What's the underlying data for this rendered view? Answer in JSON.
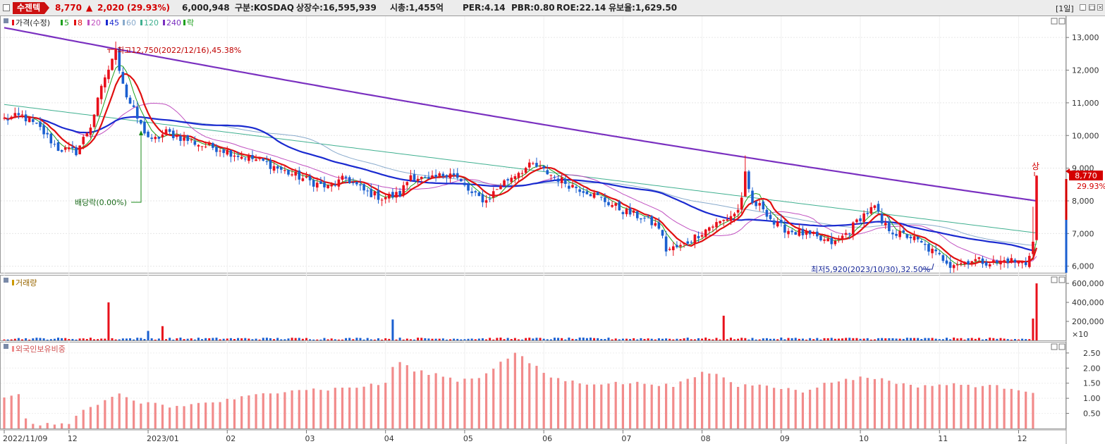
{
  "header": {
    "stock_name": "수젠텍",
    "price": "8,770",
    "arrow": "▲",
    "change": "2,020",
    "change_pct": "(29.93%)",
    "volume": "6,000,948",
    "market": "구분:KOSDAQ",
    "shares": "상장수:16,595,939",
    "mcap": "시총:1,455억",
    "per": "PER:4.14",
    "pbr": "PBR:0.80",
    "roe": "ROE:22.14",
    "float": "유보율:1,629.50",
    "period": "[1일]"
  },
  "colors": {
    "up": "#e8101b",
    "down": "#1a5fd0",
    "ma5": "#1ea01e",
    "ma8": "#e01010",
    "ma20": "#c050c0",
    "ma45": "#1a2ad0",
    "ma60": "#88aacc",
    "ma120": "#40b090",
    "ma240": "#7a30c0",
    "foreign_bar": "#f28b8b"
  },
  "legend": {
    "price": "가격(수정)",
    "ma5": "5",
    "ma8": "8",
    "ma20": "20",
    "ma45": "45",
    "ma60": "60",
    "ma120": "120",
    "ma240": "240",
    "ex": "락",
    "volume": "거래량",
    "foreign": "외국인보유비중"
  },
  "annotations": {
    "high": "최고12,750(2022/12/16),45.38%",
    "low": "최저5,920(2023/10/30),32.50%",
    "dividend": "배당락(0.00%)",
    "limit_up": "상",
    "last_price": "8,770",
    "last_pct": "29.93%"
  },
  "chart_data": [
    {
      "type": "candlestick",
      "title": "가격(수정)",
      "y_ticks": [
        "13,000",
        "12,000",
        "11,000",
        "10,000",
        "9,000",
        "8,000",
        "7,000",
        "6,000"
      ],
      "ylim": [
        5800,
        13500
      ],
      "anchors_close": [
        [
          0,
          10500
        ],
        [
          5,
          10600
        ],
        [
          10,
          10200
        ],
        [
          15,
          9600
        ],
        [
          20,
          9500
        ],
        [
          24,
          10300
        ],
        [
          28,
          11800
        ],
        [
          31,
          12500
        ],
        [
          34,
          11200
        ],
        [
          38,
          10300
        ],
        [
          41,
          9800
        ],
        [
          45,
          10100
        ],
        [
          50,
          9900
        ],
        [
          55,
          9700
        ],
        [
          60,
          9600
        ],
        [
          65,
          9400
        ],
        [
          72,
          9200
        ],
        [
          78,
          8900
        ],
        [
          85,
          8600
        ],
        [
          90,
          8400
        ],
        [
          95,
          8700
        ],
        [
          100,
          8300
        ],
        [
          105,
          8100
        ],
        [
          110,
          8200
        ],
        [
          113,
          8800
        ],
        [
          118,
          8600
        ],
        [
          124,
          8900
        ],
        [
          130,
          8200
        ],
        [
          134,
          8000
        ],
        [
          138,
          8500
        ],
        [
          143,
          8900
        ],
        [
          147,
          9100
        ],
        [
          152,
          8800
        ],
        [
          157,
          8500
        ],
        [
          162,
          8300
        ],
        [
          167,
          8000
        ],
        [
          172,
          7700
        ],
        [
          177,
          7500
        ],
        [
          182,
          7200
        ],
        [
          184,
          6500
        ],
        [
          188,
          6600
        ],
        [
          192,
          6900
        ],
        [
          196,
          7200
        ],
        [
          200,
          7400
        ],
        [
          204,
          7700
        ],
        [
          206,
          8600
        ],
        [
          208,
          7900
        ],
        [
          211,
          7800
        ],
        [
          214,
          7300
        ],
        [
          218,
          7100
        ],
        [
          222,
          7000
        ],
        [
          227,
          6800
        ],
        [
          231,
          6700
        ],
        [
          235,
          7100
        ],
        [
          238,
          7500
        ],
        [
          242,
          7800
        ],
        [
          244,
          7300
        ],
        [
          248,
          7000
        ],
        [
          252,
          6900
        ],
        [
          256,
          6600
        ],
        [
          260,
          6300
        ],
        [
          263,
          6100
        ],
        [
          266,
          6100
        ],
        [
          269,
          6200
        ],
        [
          272,
          6150
        ],
        [
          276,
          6100
        ],
        [
          279,
          6200
        ],
        [
          282,
          6100
        ],
        [
          284,
          6080
        ],
        [
          286,
          6750
        ],
        [
          287,
          8770
        ]
      ],
      "high": {
        "value": 12750,
        "date": "2022/12/16"
      },
      "low": {
        "value": 5920,
        "date": "2023/10/30"
      },
      "last_close": 8770
    },
    {
      "type": "bar",
      "title": "거래량",
      "unit": "×10",
      "y_ticks": [
        "600,000",
        "400,000",
        "200,000"
      ],
      "ylim": [
        0,
        660000
      ],
      "spikes": [
        [
          29,
          400000
        ],
        [
          40,
          100000
        ],
        [
          44,
          150000
        ],
        [
          108,
          220000
        ],
        [
          200,
          260000
        ],
        [
          286,
          230000
        ],
        [
          287,
          600000
        ]
      ]
    },
    {
      "type": "bar",
      "title": "외국인보유비중",
      "y_ticks": [
        "2.50",
        "2.00",
        "1.50",
        "1.00",
        "0.50"
      ],
      "ylim": [
        0,
        2.8
      ],
      "anchors": [
        [
          0,
          1.0
        ],
        [
          4,
          1.1
        ],
        [
          6,
          0.3
        ],
        [
          10,
          0.1
        ],
        [
          18,
          0.2
        ],
        [
          22,
          0.6
        ],
        [
          28,
          0.9
        ],
        [
          32,
          1.1
        ],
        [
          38,
          0.8
        ],
        [
          41,
          0.9
        ],
        [
          46,
          0.7
        ],
        [
          52,
          0.8
        ],
        [
          60,
          0.9
        ],
        [
          70,
          1.1
        ],
        [
          80,
          1.3
        ],
        [
          90,
          1.3
        ],
        [
          100,
          1.4
        ],
        [
          106,
          1.5
        ],
        [
          109,
          2.3
        ],
        [
          114,
          1.9
        ],
        [
          120,
          1.8
        ],
        [
          126,
          1.6
        ],
        [
          132,
          1.7
        ],
        [
          137,
          2.1
        ],
        [
          142,
          2.5
        ],
        [
          147,
          2.1
        ],
        [
          152,
          1.7
        ],
        [
          160,
          1.5
        ],
        [
          170,
          1.5
        ],
        [
          180,
          1.5
        ],
        [
          186,
          1.4
        ],
        [
          190,
          1.6
        ],
        [
          195,
          1.9
        ],
        [
          200,
          1.7
        ],
        [
          204,
          1.4
        ],
        [
          210,
          1.5
        ],
        [
          218,
          1.3
        ],
        [
          222,
          1.2
        ],
        [
          226,
          1.4
        ],
        [
          232,
          1.6
        ],
        [
          240,
          1.7
        ],
        [
          246,
          1.6
        ],
        [
          252,
          1.4
        ],
        [
          260,
          1.45
        ],
        [
          266,
          1.45
        ],
        [
          274,
          1.4
        ],
        [
          280,
          1.35
        ],
        [
          287,
          1.2
        ]
      ]
    }
  ],
  "x_labels": [
    "2022/11/09",
    "12",
    "2023/01",
    "02",
    "03",
    "04",
    "05",
    "06",
    "07",
    "08",
    "09",
    "10",
    "11",
    "12"
  ],
  "x_label_days": [
    0,
    18,
    40,
    62,
    84,
    106,
    128,
    150,
    172,
    194,
    216,
    238,
    260,
    282
  ],
  "n_days": 288
}
